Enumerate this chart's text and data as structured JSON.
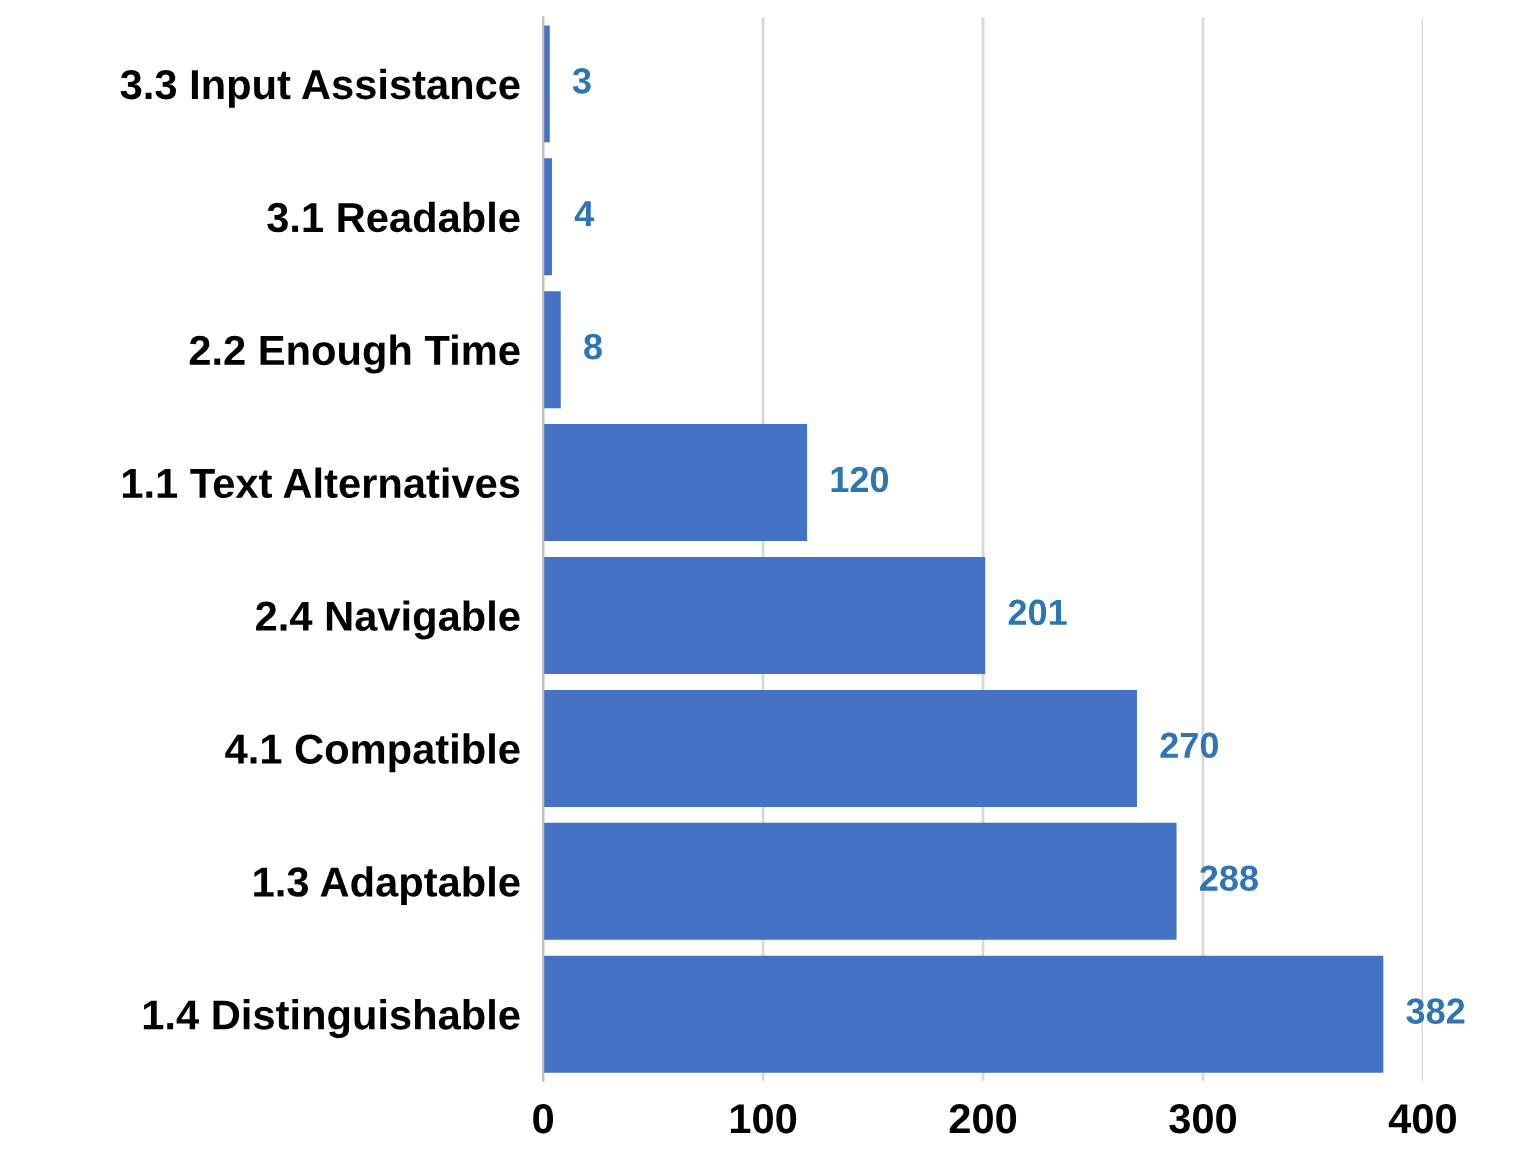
{
  "chart_data": {
    "type": "bar",
    "orientation": "horizontal",
    "categories": [
      "3.3 Input Assistance",
      "3.1 Readable",
      "2.2 Enough Time",
      "1.1 Text Alternatives",
      "2.4 Navigable",
      "4.1 Compatible",
      "1.3 Adaptable",
      "1.4 Distinguishable"
    ],
    "values": [
      3,
      4,
      8,
      120,
      201,
      270,
      288,
      382
    ],
    "color": "#4472c4",
    "xlim": [
      0,
      400
    ],
    "xticks": [
      0,
      100,
      200,
      300,
      400
    ],
    "grid": "x",
    "data_labels": true
  }
}
